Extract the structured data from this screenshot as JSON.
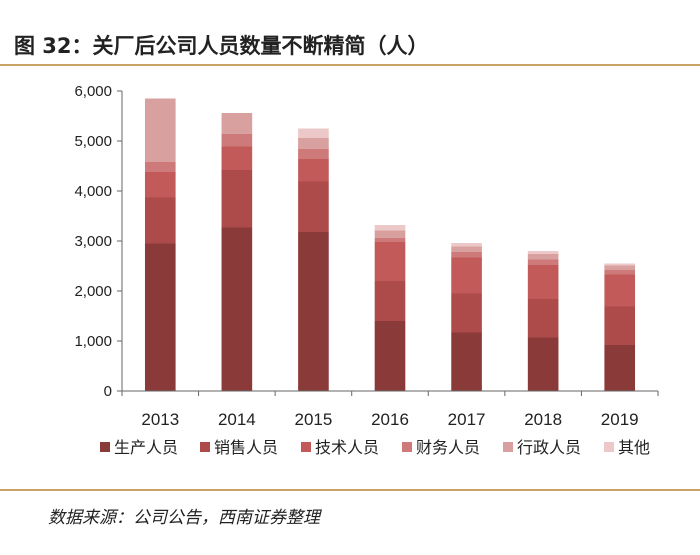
{
  "figure_title": "图 32：关厂后公司人员数量不断精简（人）",
  "source_text": "数据来源：公司公告，西南证券整理",
  "chart_data": {
    "type": "bar",
    "stacked": true,
    "title": "",
    "xlabel": "",
    "ylabel": "",
    "categories": [
      "2013",
      "2014",
      "2015",
      "2016",
      "2017",
      "2018",
      "2019"
    ],
    "ylim": [
      0,
      6000
    ],
    "yticks": [
      0,
      1000,
      2000,
      3000,
      4000,
      5000,
      6000
    ],
    "ytick_labels": [
      "0",
      "1,000",
      "2,000",
      "3,000",
      "4,000",
      "5,000",
      "6,000"
    ],
    "grid": false,
    "legend_position": "bottom",
    "series": [
      {
        "name": "生产人员",
        "color": "#8b3a3a",
        "values": [
          2950,
          3270,
          3180,
          1400,
          1170,
          1070,
          920
        ]
      },
      {
        "name": "销售人员",
        "color": "#ad4b4b",
        "values": [
          920,
          1150,
          1010,
          800,
          780,
          770,
          770
        ]
      },
      {
        "name": "技术人员",
        "color": "#c25a5a",
        "values": [
          510,
          470,
          450,
          780,
          720,
          680,
          640
        ]
      },
      {
        "name": "财务人员",
        "color": "#cf7a7a",
        "values": [
          200,
          250,
          200,
          80,
          110,
          110,
          90
        ]
      },
      {
        "name": "行政人员",
        "color": "#d9a0a0",
        "values": [
          1270,
          420,
          220,
          150,
          110,
          110,
          90
        ]
      },
      {
        "name": "其他",
        "color": "#ecc8c8",
        "values": [
          0,
          0,
          190,
          110,
          70,
          60,
          40
        ]
      }
    ]
  }
}
